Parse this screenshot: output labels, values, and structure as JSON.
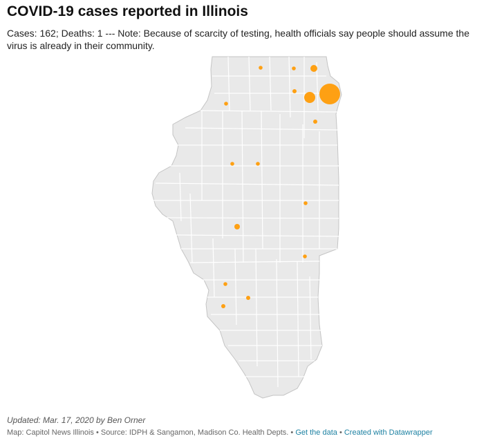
{
  "title": "COVID-19 cases reported in Illinois",
  "intro": "Cases: 162; Deaths: 1 --- Note: Because of scarcity of testing, health officials say people should assume the virus is already in their community.",
  "colors": {
    "state_fill": "#e9e9e9",
    "county_border": "#bdbdbd",
    "bubble": "#ff9900",
    "link": "#1d81a2"
  },
  "map": {
    "symbol": "proportional-circle",
    "region": "Illinois counties"
  },
  "footer": {
    "updated": "Updated: Mar. 17, 2020 by Ben Orner",
    "source": "Map: Capitol News Illinois • Source: IDPH & Sangamon, Madison Co. Health Depts.",
    "sep1": " • ",
    "get_data": "Get the data",
    "sep2": " • ",
    "created_with": "Created with Datawrapper"
  }
}
